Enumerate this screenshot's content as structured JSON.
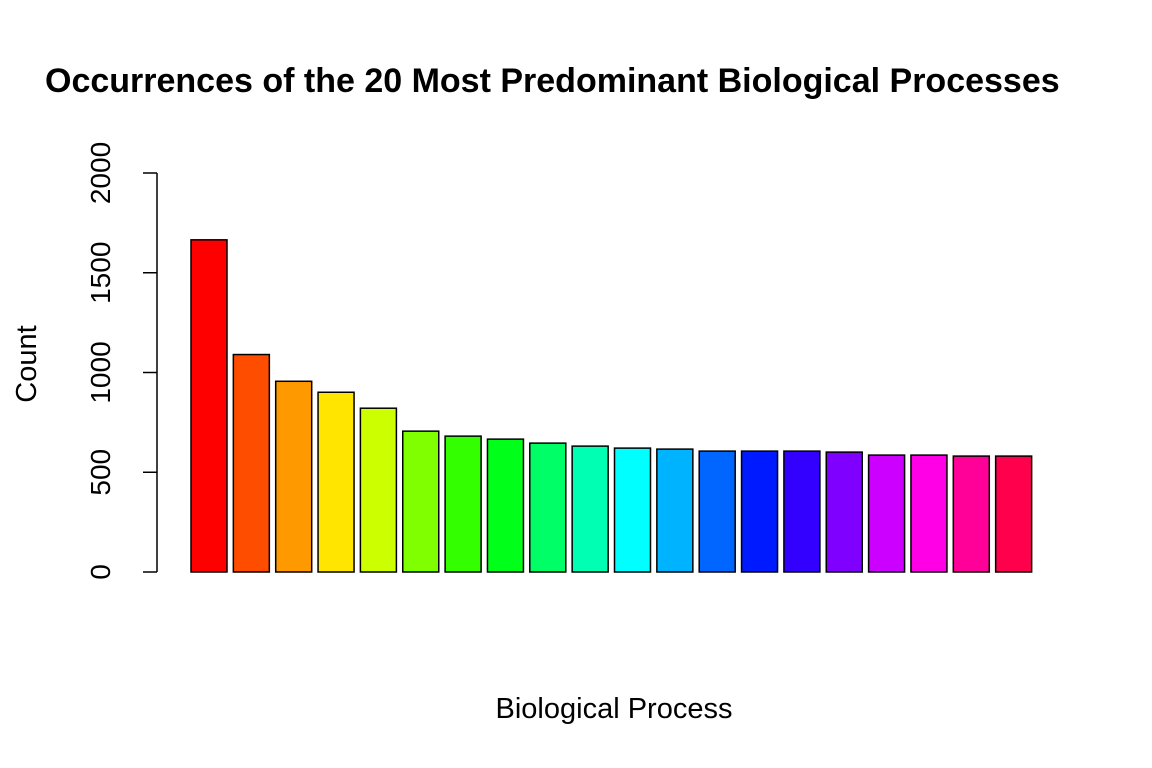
{
  "chart_data": {
    "type": "bar",
    "title": "Occurrences of the 20 Most Predominant Biological Processes",
    "x_label": "Biological Process",
    "y_label": "Count",
    "categories": [
      null,
      null,
      null,
      null,
      null,
      null,
      null,
      null,
      null,
      null,
      null,
      null,
      null,
      null,
      null,
      null,
      null,
      null,
      null,
      null
    ],
    "values": [
      1665,
      1090,
      956,
      901,
      821,
      706,
      681,
      666,
      646,
      631,
      621,
      616,
      606,
      606,
      606,
      601,
      586,
      586,
      581,
      581
    ],
    "colors": [
      "#FF0000",
      "#FF4D00",
      "#FF9900",
      "#FFE500",
      "#CCFF00",
      "#80FF00",
      "#33FF00",
      "#00FF19",
      "#00FF66",
      "#00FFB2",
      "#00FFFF",
      "#00B3FF",
      "#0066FF",
      "#001AFF",
      "#3300FF",
      "#7F00FF",
      "#CC00FF",
      "#FF00E6",
      "#FF0099",
      "#FF004D"
    ],
    "ylim": [
      0,
      2000
    ],
    "yticks": [
      0,
      500,
      1000,
      1500,
      2000
    ]
  }
}
